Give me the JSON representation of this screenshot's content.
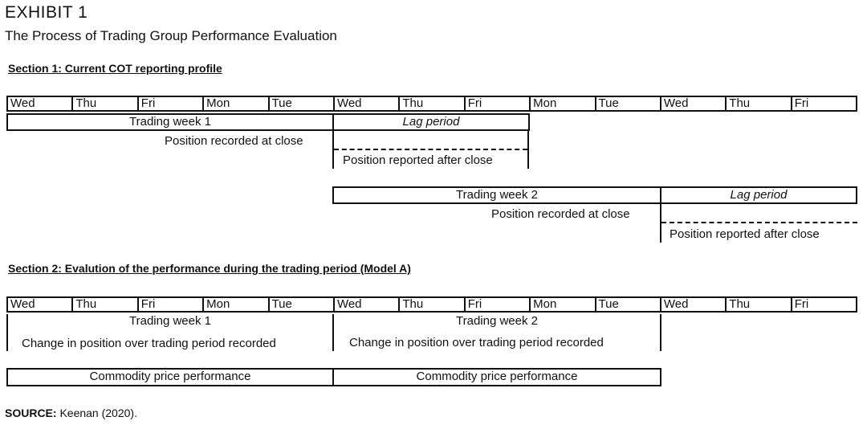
{
  "exhibit": "EXHIBIT 1",
  "title": "The Process of Trading Group Performance Evaluation",
  "section1": {
    "title": "Section 1: Current COT reporting profile",
    "days": [
      "Wed",
      "Thu",
      "Fri",
      "Mon",
      "Tue",
      "Wed",
      "Thu",
      "Fri",
      "Mon",
      "Tue",
      "Wed",
      "Thu",
      "Fri"
    ],
    "week1_label": "Trading week 1",
    "lag1_label": "Lag period",
    "recorded1": "Position recorded at close",
    "reported1": "Position reported after close",
    "week2_label": "Trading week 2",
    "lag2_label": "Lag period",
    "recorded2": "Position recorded at close",
    "reported2": "Position reported after close"
  },
  "section2": {
    "title": "Section 2: Evalution of the performance during the trading period (Model A)",
    "days": [
      "Wed",
      "Thu",
      "Fri",
      "Mon",
      "Tue",
      "Wed",
      "Thu",
      "Fri",
      "Mon",
      "Tue",
      "Wed",
      "Thu",
      "Fri"
    ],
    "week1_label": "Trading week 1",
    "week2_label": "Trading week 2",
    "change1": "Change in position over trading period recorded",
    "change2": "Change in position over trading period recorded",
    "price1": "Commodity price performance",
    "price2": "Commodity price performance"
  },
  "source": {
    "label": "SOURCE:",
    "text": " Keenan (2020)."
  }
}
